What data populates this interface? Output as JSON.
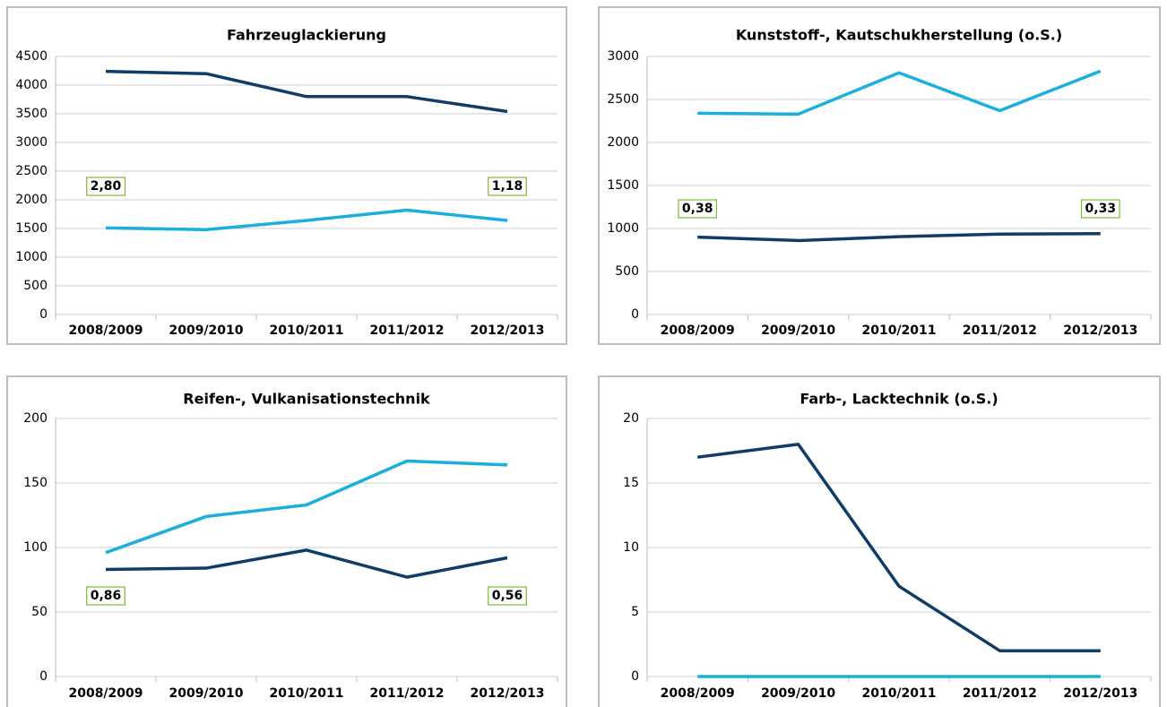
{
  "chart_data": [
    {
      "type": "line",
      "title": "Fahrzeuglackierung",
      "categories": [
        "2008/2009",
        "2009/2010",
        "2010/2011",
        "2011/2012",
        "2012/2013"
      ],
      "series": [
        {
          "color": "#0f3d66",
          "values": [
            4240,
            4200,
            3800,
            3800,
            3540
          ]
        },
        {
          "color": "#1aafdc",
          "values": [
            1510,
            1480,
            1640,
            1820,
            1640
          ]
        }
      ],
      "ylim": [
        0,
        4500
      ],
      "yticks": [
        0,
        500,
        1000,
        1500,
        2000,
        2500,
        3000,
        3500,
        4000,
        4500
      ],
      "grid": true,
      "annotations": [
        "2,80",
        "1,18"
      ]
    },
    {
      "type": "line",
      "title": "Kunststoff-, Kautschukherstellung (o.S.)",
      "categories": [
        "2008/2009",
        "2009/2010",
        "2010/2011",
        "2011/2012",
        "2012/2013"
      ],
      "series": [
        {
          "color": "#1aafdc",
          "values": [
            2340,
            2330,
            2810,
            2370,
            2830
          ]
        },
        {
          "color": "#0f3d66",
          "values": [
            900,
            860,
            905,
            935,
            940
          ]
        }
      ],
      "ylim": [
        0,
        3000
      ],
      "yticks": [
        0,
        500,
        1000,
        1500,
        2000,
        2500,
        3000
      ],
      "grid": true,
      "annotations": [
        "0,38",
        "0,33"
      ]
    },
    {
      "type": "line",
      "title": "Reifen-, Vulkanisationstechnik",
      "categories": [
        "2008/2009",
        "2009/2010",
        "2010/2011",
        "2011/2012",
        "2012/2013"
      ],
      "series": [
        {
          "color": "#1aafdc",
          "values": [
            96,
            124,
            133,
            167,
            164
          ]
        },
        {
          "color": "#0f3d66",
          "values": [
            83,
            84,
            98,
            77,
            92
          ]
        }
      ],
      "ylim": [
        0,
        200
      ],
      "yticks": [
        0,
        50,
        100,
        150,
        200
      ],
      "grid": true,
      "annotations": [
        "0,86",
        "0,56"
      ]
    },
    {
      "type": "line",
      "title": "Farb-, Lacktechnik (o.S.)",
      "categories": [
        "2008/2009",
        "2009/2010",
        "2010/2011",
        "2011/2012",
        "2012/2013"
      ],
      "series": [
        {
          "color": "#0f3d66",
          "values": [
            17,
            18,
            7,
            2,
            2
          ]
        },
        {
          "color": "#1aafdc",
          "values": [
            0,
            0,
            0,
            0,
            0
          ]
        }
      ],
      "ylim": [
        0,
        20
      ],
      "yticks": [
        0,
        5,
        10,
        15,
        20
      ],
      "grid": true,
      "annotations": []
    }
  ]
}
